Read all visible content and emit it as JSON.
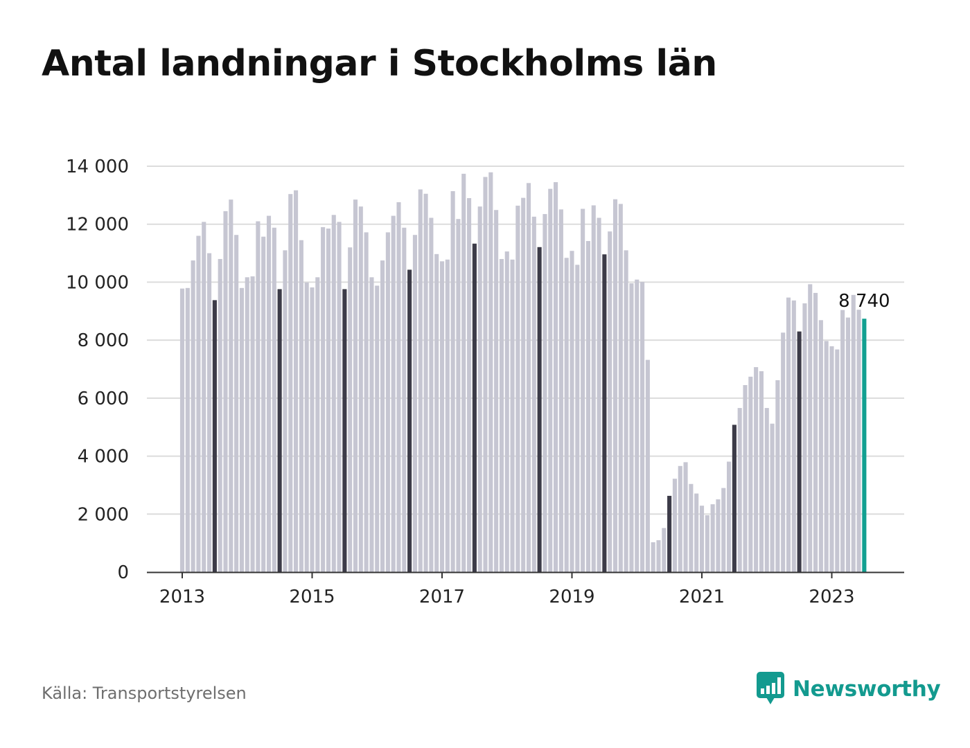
{
  "chart_data": {
    "type": "bar",
    "title": "Antal landningar i Stockholms län",
    "xlabel": "",
    "ylabel": "",
    "ylim": [
      0,
      14000
    ],
    "y_ticks": [
      0,
      2000,
      4000,
      6000,
      8000,
      10000,
      12000,
      14000
    ],
    "y_tick_labels": [
      "0",
      "2 000",
      "4 000",
      "6 000",
      "8 000",
      "10 000",
      "12 000",
      "14 000"
    ],
    "x_tick_labels": [
      "2013",
      "2015",
      "2017",
      "2019",
      "2021",
      "2023"
    ],
    "x_start": "2013-01",
    "x_end": "2023-07",
    "grid": true,
    "colors": {
      "default": "#c6c6d2",
      "july": "#3c3b48",
      "latest": "#12a091"
    },
    "highlight": "July of each year darker; latest month in teal",
    "annotation": {
      "month": "2023-07",
      "label": "8 740"
    },
    "months": [
      "2013-01",
      "2013-02",
      "2013-03",
      "2013-04",
      "2013-05",
      "2013-06",
      "2013-07",
      "2013-08",
      "2013-09",
      "2013-10",
      "2013-11",
      "2013-12",
      "2014-01",
      "2014-02",
      "2014-03",
      "2014-04",
      "2014-05",
      "2014-06",
      "2014-07",
      "2014-08",
      "2014-09",
      "2014-10",
      "2014-11",
      "2014-12",
      "2015-01",
      "2015-02",
      "2015-03",
      "2015-04",
      "2015-05",
      "2015-06",
      "2015-07",
      "2015-08",
      "2015-09",
      "2015-10",
      "2015-11",
      "2015-12",
      "2016-01",
      "2016-02",
      "2016-03",
      "2016-04",
      "2016-05",
      "2016-06",
      "2016-07",
      "2016-08",
      "2016-09",
      "2016-10",
      "2016-11",
      "2016-12",
      "2017-01",
      "2017-02",
      "2017-03",
      "2017-04",
      "2017-05",
      "2017-06",
      "2017-07",
      "2017-08",
      "2017-09",
      "2017-10",
      "2017-11",
      "2017-12",
      "2018-01",
      "2018-02",
      "2018-03",
      "2018-04",
      "2018-05",
      "2018-06",
      "2018-07",
      "2018-08",
      "2018-09",
      "2018-10",
      "2018-11",
      "2018-12",
      "2019-01",
      "2019-02",
      "2019-03",
      "2019-04",
      "2019-05",
      "2019-06",
      "2019-07",
      "2019-08",
      "2019-09",
      "2019-10",
      "2019-11",
      "2019-12",
      "2020-01",
      "2020-02",
      "2020-03",
      "2020-04",
      "2020-05",
      "2020-06",
      "2020-07",
      "2020-08",
      "2020-09",
      "2020-10",
      "2020-11",
      "2020-12",
      "2021-01",
      "2021-02",
      "2021-03",
      "2021-04",
      "2021-05",
      "2021-06",
      "2021-07",
      "2021-08",
      "2021-09",
      "2021-10",
      "2021-11",
      "2021-12",
      "2022-01",
      "2022-02",
      "2022-03",
      "2022-04",
      "2022-05",
      "2022-06",
      "2022-07",
      "2022-08",
      "2022-09",
      "2022-10",
      "2022-11",
      "2022-12",
      "2023-01",
      "2023-02",
      "2023-03",
      "2023-04",
      "2023-05",
      "2023-06",
      "2023-07"
    ],
    "values": [
      9780,
      9800,
      10750,
      11600,
      12080,
      11000,
      9380,
      10800,
      12450,
      12850,
      11630,
      9800,
      10170,
      10200,
      12100,
      11570,
      12290,
      11880,
      9760,
      11100,
      13040,
      13170,
      11450,
      9990,
      9820,
      10170,
      11900,
      11850,
      12320,
      12080,
      9760,
      11200,
      12850,
      12610,
      11720,
      10170,
      9880,
      10750,
      11720,
      12290,
      12760,
      11880,
      10430,
      11630,
      13200,
      13050,
      12220,
      10970,
      10720,
      10780,
      13140,
      12180,
      13740,
      12900,
      11330,
      12610,
      13630,
      13790,
      12490,
      10800,
      11060,
      10780,
      12640,
      12910,
      13420,
      12260,
      11210,
      12350,
      13220,
      13450,
      12510,
      10840,
      11080,
      10600,
      12530,
      11420,
      12650,
      12220,
      10960,
      11750,
      12860,
      12700,
      11100,
      9960,
      10090,
      10010,
      7320,
      1030,
      1100,
      1520,
      2630,
      3220,
      3660,
      3790,
      3040,
      2710,
      2290,
      1960,
      2340,
      2510,
      2900,
      3810,
      5080,
      5660,
      6450,
      6740,
      7070,
      6930,
      5660,
      5120,
      6620,
      8260,
      9470,
      9370,
      8300,
      9270,
      9930,
      9630,
      8690,
      7970,
      7790,
      7680,
      9040,
      8780,
      9560,
      9050,
      8740
    ]
  },
  "source": "Källa: Transportstyrelsen",
  "brand": {
    "name": "Newsworthy",
    "color": "#139a8f",
    "icon": "newsworthy-logo-icon"
  }
}
